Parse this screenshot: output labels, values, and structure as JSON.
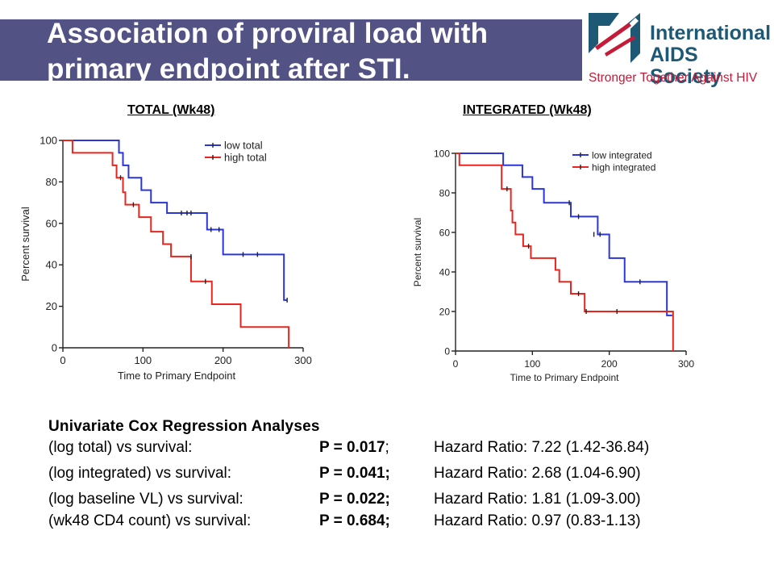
{
  "slide": {
    "title": "Association of proviral load with primary endpoint after STI."
  },
  "logo": {
    "name_line1": "International",
    "name_line2": "AIDS Society",
    "tagline": "Stronger Together Against HIV",
    "colors": {
      "name": "#1d5874",
      "tagline": "#c41b38",
      "mark_blue": "#1d5874",
      "mark_red": "#c41b38"
    }
  },
  "chart_data": [
    {
      "type": "line",
      "subtype": "kaplan-meier-step",
      "title": "TOTAL (Wk48)",
      "xlabel": "Time to  Primary Endpoint",
      "ylabel": "Percent survival",
      "xlim": [
        0,
        300
      ],
      "ylim": [
        0,
        100
      ],
      "xticks": [
        0,
        100,
        200,
        300
      ],
      "yticks": [
        0,
        20,
        40,
        60,
        80,
        100
      ],
      "grid": false,
      "legend_position": "top-right",
      "series": [
        {
          "name": "low total",
          "color": "#2b36d8",
          "steps": [
            [
              0,
              100
            ],
            [
              70,
              94
            ],
            [
              75,
              88
            ],
            [
              82,
              82
            ],
            [
              98,
              76
            ],
            [
              110,
              70
            ],
            [
              130,
              65
            ],
            [
              180,
              57
            ],
            [
              200,
              45
            ],
            [
              276,
              23
            ],
            [
              280,
              23
            ]
          ],
          "censored": [
            [
              148,
              65
            ],
            [
              155,
              65
            ],
            [
              160,
              65
            ],
            [
              185,
              57
            ],
            [
              195,
              57
            ],
            [
              225,
              45
            ],
            [
              243,
              45
            ],
            [
              280,
              23
            ]
          ]
        },
        {
          "name": "high total",
          "color": "#e8261f",
          "steps": [
            [
              0,
              100
            ],
            [
              12,
              94
            ],
            [
              62,
              88
            ],
            [
              67,
              82
            ],
            [
              75,
              75
            ],
            [
              78,
              69
            ],
            [
              95,
              63
            ],
            [
              110,
              56
            ],
            [
              125,
              50
            ],
            [
              135,
              44
            ],
            [
              160,
              32
            ],
            [
              186,
              21
            ],
            [
              222,
              10
            ],
            [
              282,
              0
            ]
          ],
          "censored": [
            [
              72,
              82
            ],
            [
              88,
              69
            ],
            [
              160,
              44
            ],
            [
              178,
              32
            ]
          ]
        }
      ]
    },
    {
      "type": "line",
      "subtype": "kaplan-meier-step",
      "title": "INTEGRATED (Wk48)",
      "xlabel": "Time to Primary Endpoint",
      "ylabel": "Percent survival",
      "xlim": [
        0,
        300
      ],
      "ylim": [
        0,
        100
      ],
      "xticks": [
        0,
        100,
        200,
        300
      ],
      "yticks": [
        0,
        20,
        40,
        60,
        80,
        100
      ],
      "grid": false,
      "legend_position": "top-right",
      "series": [
        {
          "name": "low integrated",
          "color": "#2b36d8",
          "steps": [
            [
              0,
              100
            ],
            [
              62,
              94
            ],
            [
              87,
              88
            ],
            [
              100,
              82
            ],
            [
              115,
              75
            ],
            [
              150,
              68
            ],
            [
              185,
              59
            ],
            [
              200,
              47
            ],
            [
              220,
              35
            ],
            [
              275,
              18
            ],
            [
              282,
              18
            ]
          ],
          "censored": [
            [
              148,
              75
            ],
            [
              160,
              68
            ],
            [
              180,
              59
            ],
            [
              188,
              59
            ],
            [
              240,
              35
            ]
          ]
        },
        {
          "name": "high integrated",
          "color": "#e8261f",
          "steps": [
            [
              0,
              100
            ],
            [
              5,
              94
            ],
            [
              60,
              82
            ],
            [
              72,
              71
            ],
            [
              74,
              65
            ],
            [
              78,
              59
            ],
            [
              88,
              53
            ],
            [
              98,
              47
            ],
            [
              130,
              41
            ],
            [
              135,
              35
            ],
            [
              150,
              29
            ],
            [
              168,
              20
            ],
            [
              283,
              20
            ],
            [
              283,
              0
            ]
          ],
          "censored": [
            [
              67,
              82
            ],
            [
              95,
              53
            ],
            [
              160,
              29
            ],
            [
              170,
              20
            ],
            [
              210,
              20
            ]
          ]
        }
      ]
    }
  ],
  "stats": {
    "heading": "Univariate Cox Regression Analyses",
    "rows": [
      {
        "label": "(log total) vs survival:",
        "p": "P = 0.017",
        "sep": ";",
        "hr": "Hazard Ratio: 7.22 (1.42-36.84)"
      },
      {
        "label": "(log integrated) vs survival:",
        "p": "P = 0.041;",
        "sep": "",
        "hr": "Hazard Ratio: 2.68 (1.04-6.90)"
      },
      {
        "label": "(log baseline VL) vs survival:",
        "p": "P = 0.022;",
        "sep": "",
        "hr": "Hazard Ratio: 1.81 (1.09-3.00)"
      },
      {
        "label": "(wk48 CD4 count) vs survival:",
        "p": "P = 0.684;",
        "sep": "",
        "hr": "Hazard Ratio: 0.97 (0.83-1.13)"
      }
    ]
  }
}
